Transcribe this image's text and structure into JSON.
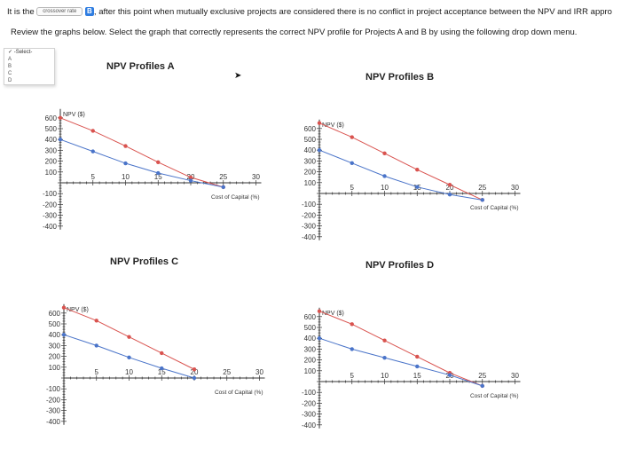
{
  "header": {
    "text_before": "It is the",
    "select_value": "crossover rate",
    "marker": "B",
    "text_after": ", after this point when mutually exclusive projects are considered there is no conflict in project acceptance between the NPV and IRR appro"
  },
  "instructions": "Review the graphs below. Select the graph that correctly represents the correct NPV profile for Projects A and B by using the following drop down menu.",
  "dropdown": {
    "selected": "-Select-",
    "options": [
      "A",
      "B",
      "C",
      "D"
    ]
  },
  "colors": {
    "red_series": "#d9534f",
    "blue_series": "#4a74c9",
    "axis": "#333333"
  },
  "chart_data": [
    {
      "type": "line",
      "title": "NPV Profiles A",
      "ylabel": "NPV ($)",
      "xlabel": "Cost of Capital (%)",
      "xlim": [
        0,
        30
      ],
      "ylim": [
        -400,
        600
      ],
      "x_ticks": [
        5,
        10,
        15,
        20,
        25,
        30
      ],
      "y_ticks": [
        600,
        500,
        400,
        300,
        200,
        100,
        -100,
        -200,
        -300,
        -400
      ],
      "series": [
        {
          "color": "red",
          "x": [
            0,
            5,
            10,
            15,
            20,
            25
          ],
          "y": [
            600,
            480,
            340,
            190,
            50,
            -40
          ]
        },
        {
          "color": "blue",
          "x": [
            0,
            5,
            10,
            15,
            20,
            25
          ],
          "y": [
            400,
            290,
            180,
            90,
            20,
            -40
          ]
        }
      ]
    },
    {
      "type": "line",
      "title": "NPV Profiles B",
      "ylabel": "NPV ($)",
      "xlabel": "Cost of Capital (%)",
      "xlim": [
        0,
        30
      ],
      "ylim": [
        -400,
        600
      ],
      "x_ticks": [
        5,
        10,
        15,
        20,
        25,
        30
      ],
      "y_ticks": [
        600,
        500,
        400,
        300,
        200,
        100,
        -100,
        -200,
        -300,
        -400
      ],
      "series": [
        {
          "color": "red",
          "x": [
            0,
            5,
            10,
            15,
            20,
            25
          ],
          "y": [
            650,
            520,
            370,
            220,
            80,
            -60
          ]
        },
        {
          "color": "blue",
          "x": [
            0,
            5,
            10,
            15,
            20,
            25
          ],
          "y": [
            400,
            280,
            160,
            60,
            -10,
            -60
          ]
        }
      ]
    },
    {
      "type": "line",
      "title": "NPV Profiles C",
      "ylabel": "NPV ($)",
      "xlabel": "Cost of Capital (%)",
      "xlim": [
        0,
        30
      ],
      "ylim": [
        -400,
        600
      ],
      "x_ticks": [
        5,
        10,
        15,
        20,
        25,
        30
      ],
      "y_ticks": [
        600,
        500,
        400,
        300,
        200,
        100,
        -100,
        -200,
        -300,
        -400
      ],
      "series": [
        {
          "color": "red",
          "x": [
            0,
            5,
            10,
            15,
            20
          ],
          "y": [
            650,
            530,
            380,
            230,
            80
          ]
        },
        {
          "color": "blue",
          "x": [
            0,
            5,
            10,
            15,
            20
          ],
          "y": [
            400,
            300,
            190,
            90,
            0
          ]
        }
      ]
    },
    {
      "type": "line",
      "title": "NPV Profiles D",
      "ylabel": "NPV ($)",
      "xlabel": "Cost of Capital (%)",
      "xlim": [
        0,
        30
      ],
      "ylim": [
        -400,
        600
      ],
      "x_ticks": [
        5,
        10,
        15,
        20,
        25,
        30
      ],
      "y_ticks": [
        600,
        500,
        400,
        300,
        200,
        100,
        -100,
        -200,
        -300,
        -400
      ],
      "series": [
        {
          "color": "red",
          "x": [
            0,
            5,
            10,
            15,
            20,
            25
          ],
          "y": [
            650,
            530,
            380,
            230,
            80,
            -40
          ]
        },
        {
          "color": "blue",
          "x": [
            0,
            5,
            10,
            15,
            20,
            25
          ],
          "y": [
            400,
            300,
            220,
            140,
            60,
            -40
          ]
        }
      ]
    }
  ]
}
